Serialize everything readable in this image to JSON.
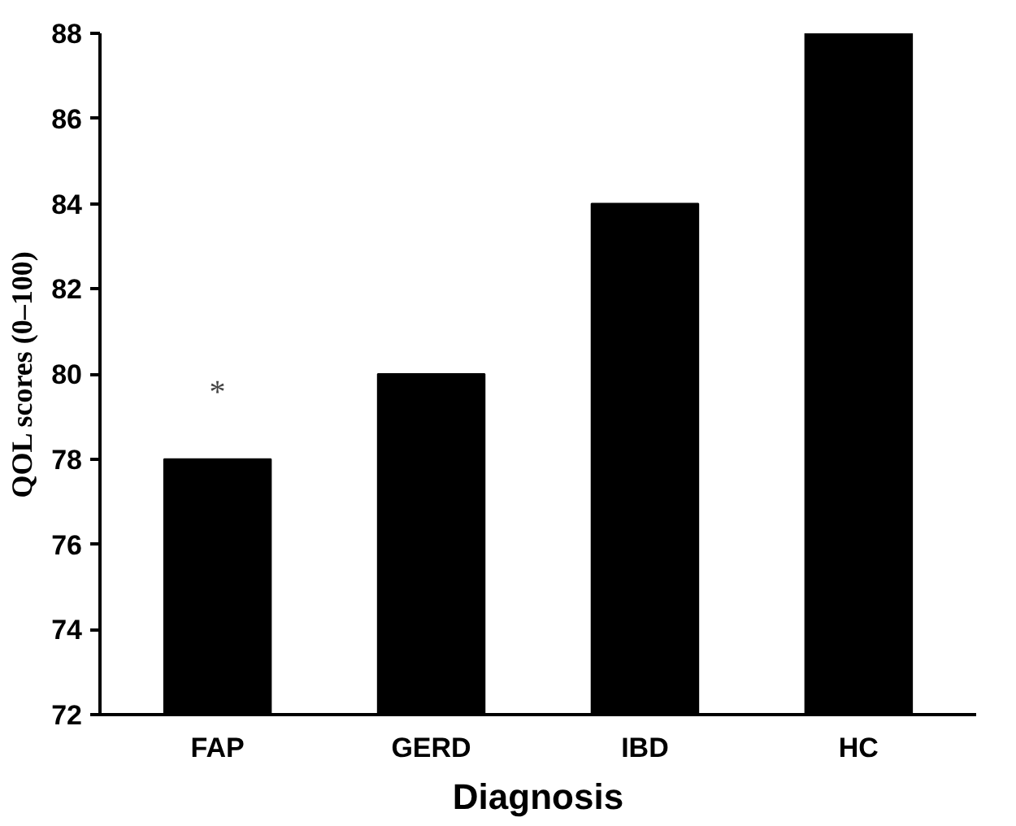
{
  "chart_data": {
    "type": "bar",
    "xlabel": "Diagnosis",
    "ylabel": "QOL scores (0–100)",
    "categories": [
      "FAP",
      "GERD",
      "IBD",
      "HC"
    ],
    "values": [
      78,
      80,
      84,
      88
    ],
    "color": "#000000",
    "ylim": [
      72,
      88
    ],
    "yticks": [
      72,
      74,
      76,
      78,
      80,
      82,
      84,
      86,
      88
    ],
    "grid": false,
    "annotations": [
      "*"
    ]
  }
}
